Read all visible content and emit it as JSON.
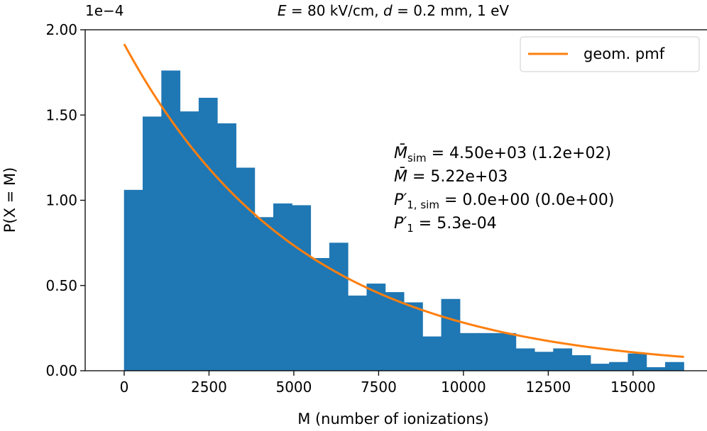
{
  "chart_data": {
    "type": "bar",
    "title": "E = 80 kV/cm, d = 0.2 mm, 1 eV",
    "title_parts": {
      "E": "E",
      "e_val": " = 80 kV/cm, ",
      "d": "d",
      "rest": " = 0.2 mm, 1 eV"
    },
    "xlabel": "M (number of ionizations)",
    "ylabel": "P(X = M)",
    "y_scale_label": "1e−4",
    "y_scale": 0.0001,
    "xlim": [
      -1150,
      17200
    ],
    "ylim": [
      0,
      2.0
    ],
    "grid": false,
    "x_ticks": [
      0,
      2500,
      5000,
      7500,
      10000,
      12500,
      15000
    ],
    "x_tick_labels": [
      "0",
      "2500",
      "5000",
      "7500",
      "10000",
      "12500",
      "15000"
    ],
    "y_ticks": [
      0,
      0.5,
      1.0,
      1.5,
      2.0
    ],
    "y_tick_labels": [
      "0.00",
      "0.50",
      "1.00",
      "1.50",
      "2.00"
    ],
    "histogram": {
      "name": "simulated",
      "color": "#1f77b4",
      "bin_start": 0,
      "bin_width": 550,
      "values": [
        1.06,
        1.49,
        1.76,
        1.52,
        1.6,
        1.45,
        1.19,
        0.9,
        0.98,
        0.97,
        0.66,
        0.75,
        0.44,
        0.51,
        0.46,
        0.4,
        0.2,
        0.42,
        0.22,
        0.22,
        0.22,
        0.13,
        0.11,
        0.13,
        0.09,
        0.04,
        0.05,
        0.1,
        0.02,
        0.05
      ]
    },
    "curve": {
      "name": "geom. pmf",
      "color": "#ff7f0e",
      "x_start": 0,
      "x_end": 16500,
      "y0": 1.916,
      "mean": 5220
    },
    "legend": {
      "position": "top-right",
      "entries": [
        "geom. pmf"
      ]
    },
    "annotations": {
      "line1": {
        "sym": "M̄",
        "sub": "sim",
        "text": " = 4.50e+03 (1.2e+02)"
      },
      "line2": {
        "sym": "M̄",
        "text": " = 5.22e+03"
      },
      "line3": {
        "sym": "P′",
        "sub": "1, sim",
        "text": " = 0.0e+00 (0.0e+00)"
      },
      "line4": {
        "sym": "P′",
        "sub": "1",
        "text": " = 5.3e-04"
      }
    }
  }
}
